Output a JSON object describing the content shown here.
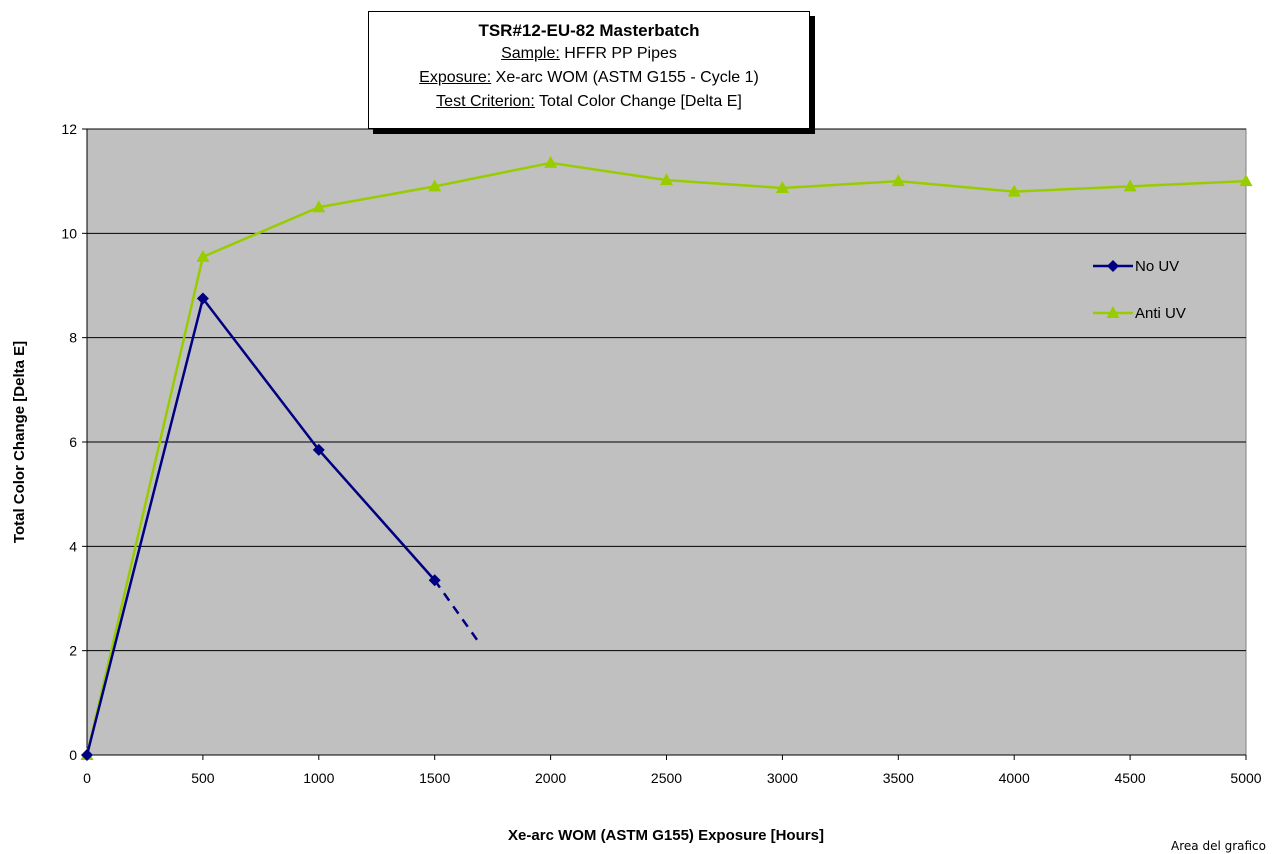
{
  "chart_data": {
    "type": "line",
    "title": "TSR#12-EU-82 Masterbatch",
    "subtitle_lines": [
      {
        "label": "Sample:",
        "value": "HFFR PP Pipes"
      },
      {
        "label": "Exposure:",
        "value": "Xe-arc WOM (ASTM G155 - Cycle 1)"
      },
      {
        "label": "Test Criterion:",
        "value": "Total Color Change [Delta E]"
      }
    ],
    "xlabel": "Xe-arc WOM (ASTM G155) Exposure [Hours]",
    "ylabel": "Total Color Change [Delta E]",
    "xlim": [
      0,
      5000
    ],
    "ylim": [
      0,
      12
    ],
    "x_ticks": [
      0,
      500,
      1000,
      1500,
      2000,
      2500,
      3000,
      3500,
      4000,
      4500,
      5000
    ],
    "y_ticks": [
      0,
      2,
      4,
      6,
      8,
      10,
      12
    ],
    "grid": "horizontal",
    "plot_background": "#c0c0c0",
    "legend_position": "right",
    "series": [
      {
        "name": "No UV",
        "color": "#000080",
        "marker": "diamond",
        "x": [
          0,
          500,
          1000,
          1500
        ],
        "y": [
          0,
          8.75,
          5.85,
          3.35
        ],
        "extrapolation": {
          "style": "dashed",
          "x": [
            1500,
            1700
          ],
          "y": [
            3.35,
            2.1
          ]
        }
      },
      {
        "name": "Anti UV",
        "color": "#99cc00",
        "marker": "triangle",
        "x": [
          0,
          500,
          1000,
          1500,
          2000,
          2500,
          3000,
          3500,
          4000,
          4500,
          5000
        ],
        "y": [
          0,
          9.55,
          10.5,
          10.9,
          11.35,
          11.02,
          10.87,
          11.0,
          10.8,
          10.9,
          11.0
        ]
      }
    ],
    "corner_label": "Area del grafico"
  }
}
